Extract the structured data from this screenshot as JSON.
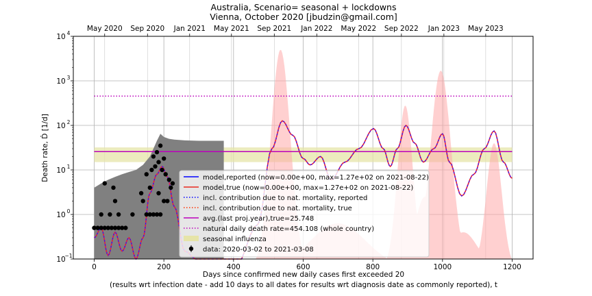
{
  "chart_data": {
    "type": "line",
    "title_line1": "Australia, Scenario= seasonal + lockdowns",
    "title_line2": "Vienna, October 2020 [jbudzin@gmail.com]",
    "xlabel_line1": "Days since confirmed new daily cases first exceeded 20",
    "xlabel_line2": "(results wrt infection date - add 10 days to all dates for results wrt diagnosis date as commonly reported), t",
    "ylabel": "Death rate, Ḋ [1/d]",
    "yscale": "log",
    "xlim": [
      -60,
      1260
    ],
    "ylim_log10": [
      -1,
      4
    ],
    "x_ticks": [
      0,
      200,
      400,
      600,
      800,
      1000,
      1200
    ],
    "y_tick_exponents": [
      -1,
      0,
      1,
      2,
      3,
      4
    ],
    "y_tick_labels": [
      "10",
      "10",
      "10",
      "10",
      "10",
      "10"
    ],
    "y_tick_exp_labels": [
      "−1",
      "0",
      "1",
      "2",
      "3",
      "4"
    ],
    "top_axis_ticks": [
      {
        "x": 30,
        "label": "May 2020"
      },
      {
        "x": 153,
        "label": "Sep 2020"
      },
      {
        "x": 274,
        "label": "Jan 2021"
      },
      {
        "x": 394,
        "label": "May 2021"
      },
      {
        "x": 517,
        "label": "Sep 2021"
      },
      {
        "x": 639,
        "label": "Jan 2022"
      },
      {
        "x": 759,
        "label": "May 2022"
      },
      {
        "x": 882,
        "label": "Sep 2022"
      },
      {
        "x": 1004,
        "label": "Jan 2023"
      },
      {
        "x": 1124,
        "label": "May 2023"
      }
    ],
    "grid": true,
    "legend_position": "lower-right",
    "legend": [
      {
        "label": "model,reported (now=0.00e+00, max=1.27e+02 on 2021-08-22)",
        "style": "solid",
        "color": "#0000ff"
      },
      {
        "label": "model,true (now=0.00e+00, max=1.27e+02 on 2021-08-22)",
        "style": "solid",
        "color": "#e8281e"
      },
      {
        "label": "incl. contribution due to nat. mortality, reported",
        "style": "dotted",
        "color": "#0000ff"
      },
      {
        "label": "incl. contribution due to nat. mortality, true",
        "style": "dotted",
        "color": "#ff3000"
      },
      {
        "label": "avg.(last proj.year),true=25.748",
        "style": "solid",
        "color": "#bb00bb"
      },
      {
        "label": "natural daily death rate=454.108 (whole country)",
        "style": "dotted",
        "color": "#bb00bb"
      },
      {
        "label": "seasonal influenza",
        "style": "patch",
        "color": "#e6e4a8"
      },
      {
        "label": "data: 2020-03-02 to 2021-03-08",
        "style": "marker",
        "color": "#000000"
      }
    ],
    "reference_lines": {
      "natural_daily_death_rate": 454.108,
      "avg_last_proj_year": 25.748
    },
    "seasonal_influenza_band": [
      15,
      32
    ],
    "model_peaks": [
      {
        "x": 195,
        "y": 12
      },
      {
        "x": 540,
        "y": 127
      },
      {
        "x": 802,
        "y": 85
      },
      {
        "x": 895,
        "y": 100
      },
      {
        "x": 1000,
        "y": 65
      },
      {
        "x": 1148,
        "y": 75
      }
    ],
    "model_troughs": [
      {
        "x": 620,
        "y": 13
      },
      {
        "x": 850,
        "y": 12
      },
      {
        "x": 1055,
        "y": 2.6
      },
      {
        "x": 1200,
        "y": 6.5
      }
    ],
    "uncertainty_band_peaks": [
      {
        "x": 535,
        "y": 5000
      },
      {
        "x": 893,
        "y": 280
      },
      {
        "x": 995,
        "y": 1700
      },
      {
        "x": 1148,
        "y": 40
      }
    ],
    "data_points": [
      [
        0,
        0.5
      ],
      [
        10,
        0.5
      ],
      [
        20,
        0.5
      ],
      [
        30,
        0.5
      ],
      [
        40,
        0.5
      ],
      [
        50,
        0.5
      ],
      [
        60,
        0.5
      ],
      [
        70,
        0.5
      ],
      [
        80,
        0.5
      ],
      [
        90,
        0.5
      ],
      [
        20,
        1.0
      ],
      [
        45,
        1.0
      ],
      [
        70,
        1.0
      ],
      [
        110,
        1.0
      ],
      [
        150,
        1.0
      ],
      [
        160,
        1.0
      ],
      [
        170,
        1.0
      ],
      [
        180,
        1.0
      ],
      [
        190,
        1.0
      ],
      [
        60,
        2.0
      ],
      [
        140,
        2.0
      ],
      [
        200,
        2.0
      ],
      [
        210,
        2.0
      ],
      [
        30,
        5.0
      ],
      [
        55,
        4.0
      ],
      [
        135,
        3.0
      ],
      [
        160,
        4.0
      ],
      [
        185,
        3.0
      ],
      [
        220,
        4.0
      ],
      [
        150,
        8.0
      ],
      [
        165,
        10.0
      ],
      [
        175,
        12.0
      ],
      [
        185,
        15.0
      ],
      [
        195,
        10.0
      ],
      [
        205,
        8.0
      ],
      [
        215,
        6.0
      ],
      [
        225,
        5.0
      ],
      [
        170,
        20.0
      ],
      [
        180,
        25.0
      ],
      [
        190,
        35.0
      ],
      [
        200,
        18.0
      ]
    ],
    "data_envelope": {
      "x": [
        0,
        20,
        40,
        60,
        80,
        100,
        120,
        140,
        160,
        170,
        180,
        190,
        200,
        215,
        230,
        260,
        300,
        340,
        372
      ],
      "upper": [
        4,
        5,
        6,
        7,
        8,
        9,
        10,
        13,
        20,
        30,
        45,
        65,
        55,
        50,
        48,
        46,
        45,
        45,
        45
      ]
    }
  }
}
